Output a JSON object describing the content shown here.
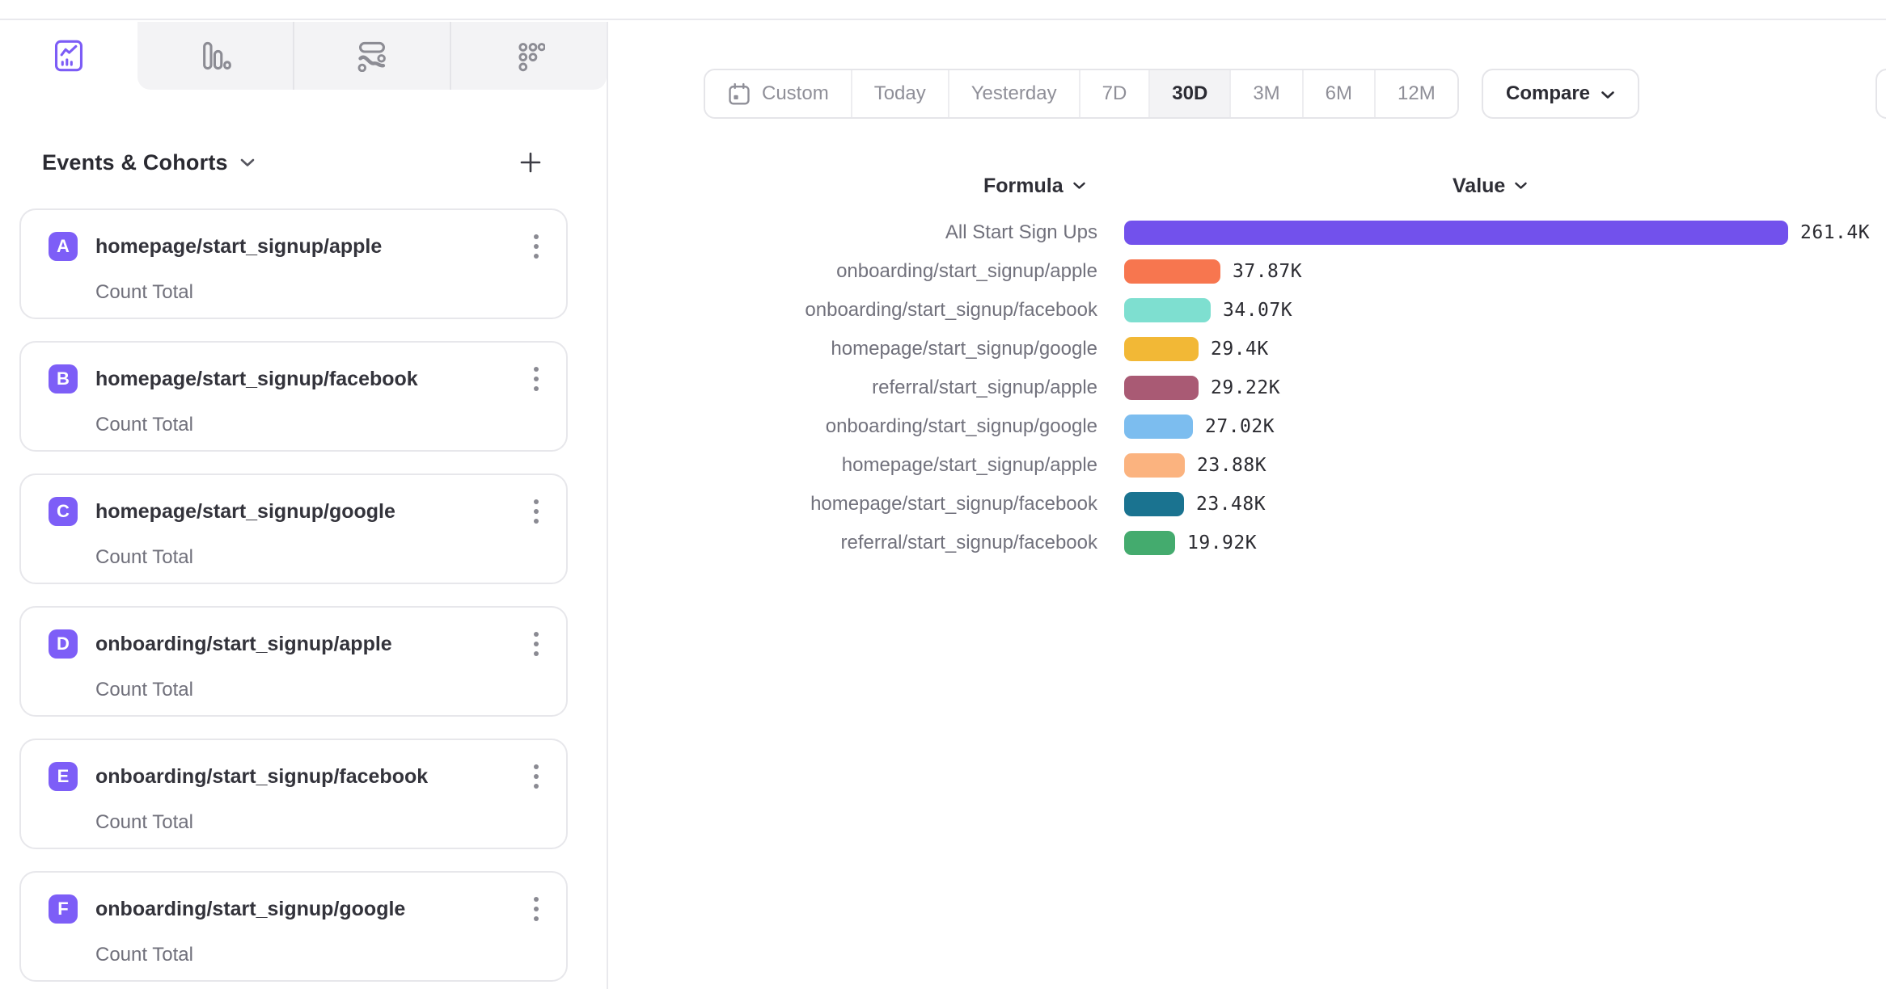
{
  "sidebar": {
    "title": "Events & Cohorts",
    "items": [
      {
        "letter": "A",
        "name": "homepage/start_signup/apple",
        "metric": "Count Total"
      },
      {
        "letter": "B",
        "name": "homepage/start_signup/facebook",
        "metric": "Count Total"
      },
      {
        "letter": "C",
        "name": "homepage/start_signup/google",
        "metric": "Count Total"
      },
      {
        "letter": "D",
        "name": "onboarding/start_signup/apple",
        "metric": "Count Total"
      },
      {
        "letter": "E",
        "name": "onboarding/start_signup/facebook",
        "metric": "Count Total"
      },
      {
        "letter": "F",
        "name": "onboarding/start_signup/google",
        "metric": "Count Total"
      }
    ]
  },
  "tabs": [
    {
      "id": "insights-line-chart",
      "active": true
    },
    {
      "id": "bar-chart",
      "active": false
    },
    {
      "id": "flows",
      "active": false
    },
    {
      "id": "grid",
      "active": false
    }
  ],
  "toolbar": {
    "ranges": [
      {
        "label": "Custom",
        "icon": "calendar",
        "active": false
      },
      {
        "label": "Today",
        "active": false
      },
      {
        "label": "Yesterday",
        "active": false
      },
      {
        "label": "7D",
        "active": false
      },
      {
        "label": "30D",
        "active": true
      },
      {
        "label": "3M",
        "active": false
      },
      {
        "label": "6M",
        "active": false
      },
      {
        "label": "12M",
        "active": false
      }
    ],
    "compare_label": "Compare"
  },
  "chart_data": {
    "type": "bar",
    "orientation": "horizontal",
    "columns": {
      "formula": "Formula",
      "value": "Value"
    },
    "max_value": 261400,
    "legend": "none",
    "rows": [
      {
        "label": "All Start Sign Ups",
        "value": 261400,
        "display": "261.4K",
        "color": "#7251ec"
      },
      {
        "label": "onboarding/start_signup/apple",
        "value": 37870,
        "display": "37.87K",
        "color": "#f7764f"
      },
      {
        "label": "onboarding/start_signup/facebook",
        "value": 34070,
        "display": "34.07K",
        "color": "#7edfd0"
      },
      {
        "label": "homepage/start_signup/google",
        "value": 29400,
        "display": "29.4K",
        "color": "#f2b836"
      },
      {
        "label": "referral/start_signup/apple",
        "value": 29220,
        "display": "29.22K",
        "color": "#a95a74"
      },
      {
        "label": "onboarding/start_signup/google",
        "value": 27020,
        "display": "27.02K",
        "color": "#7cbdef"
      },
      {
        "label": "homepage/start_signup/apple",
        "value": 23880,
        "display": "23.88K",
        "color": "#fbb37f"
      },
      {
        "label": "homepage/start_signup/facebook",
        "value": 23480,
        "display": "23.48K",
        "color": "#1a7390"
      },
      {
        "label": "referral/start_signup/facebook",
        "value": 19920,
        "display": "19.92K",
        "color": "#44ab6e"
      }
    ]
  },
  "colors": {
    "accent_purple": "#7c5cf6",
    "badge_purple": "#7d5ef7",
    "border_gray": "#e7e7eb",
    "tab_bg": "#f3f3f5",
    "text_dark": "#2e2e36",
    "text_gray": "#8f8f98",
    "label_gray": "#71717c"
  }
}
